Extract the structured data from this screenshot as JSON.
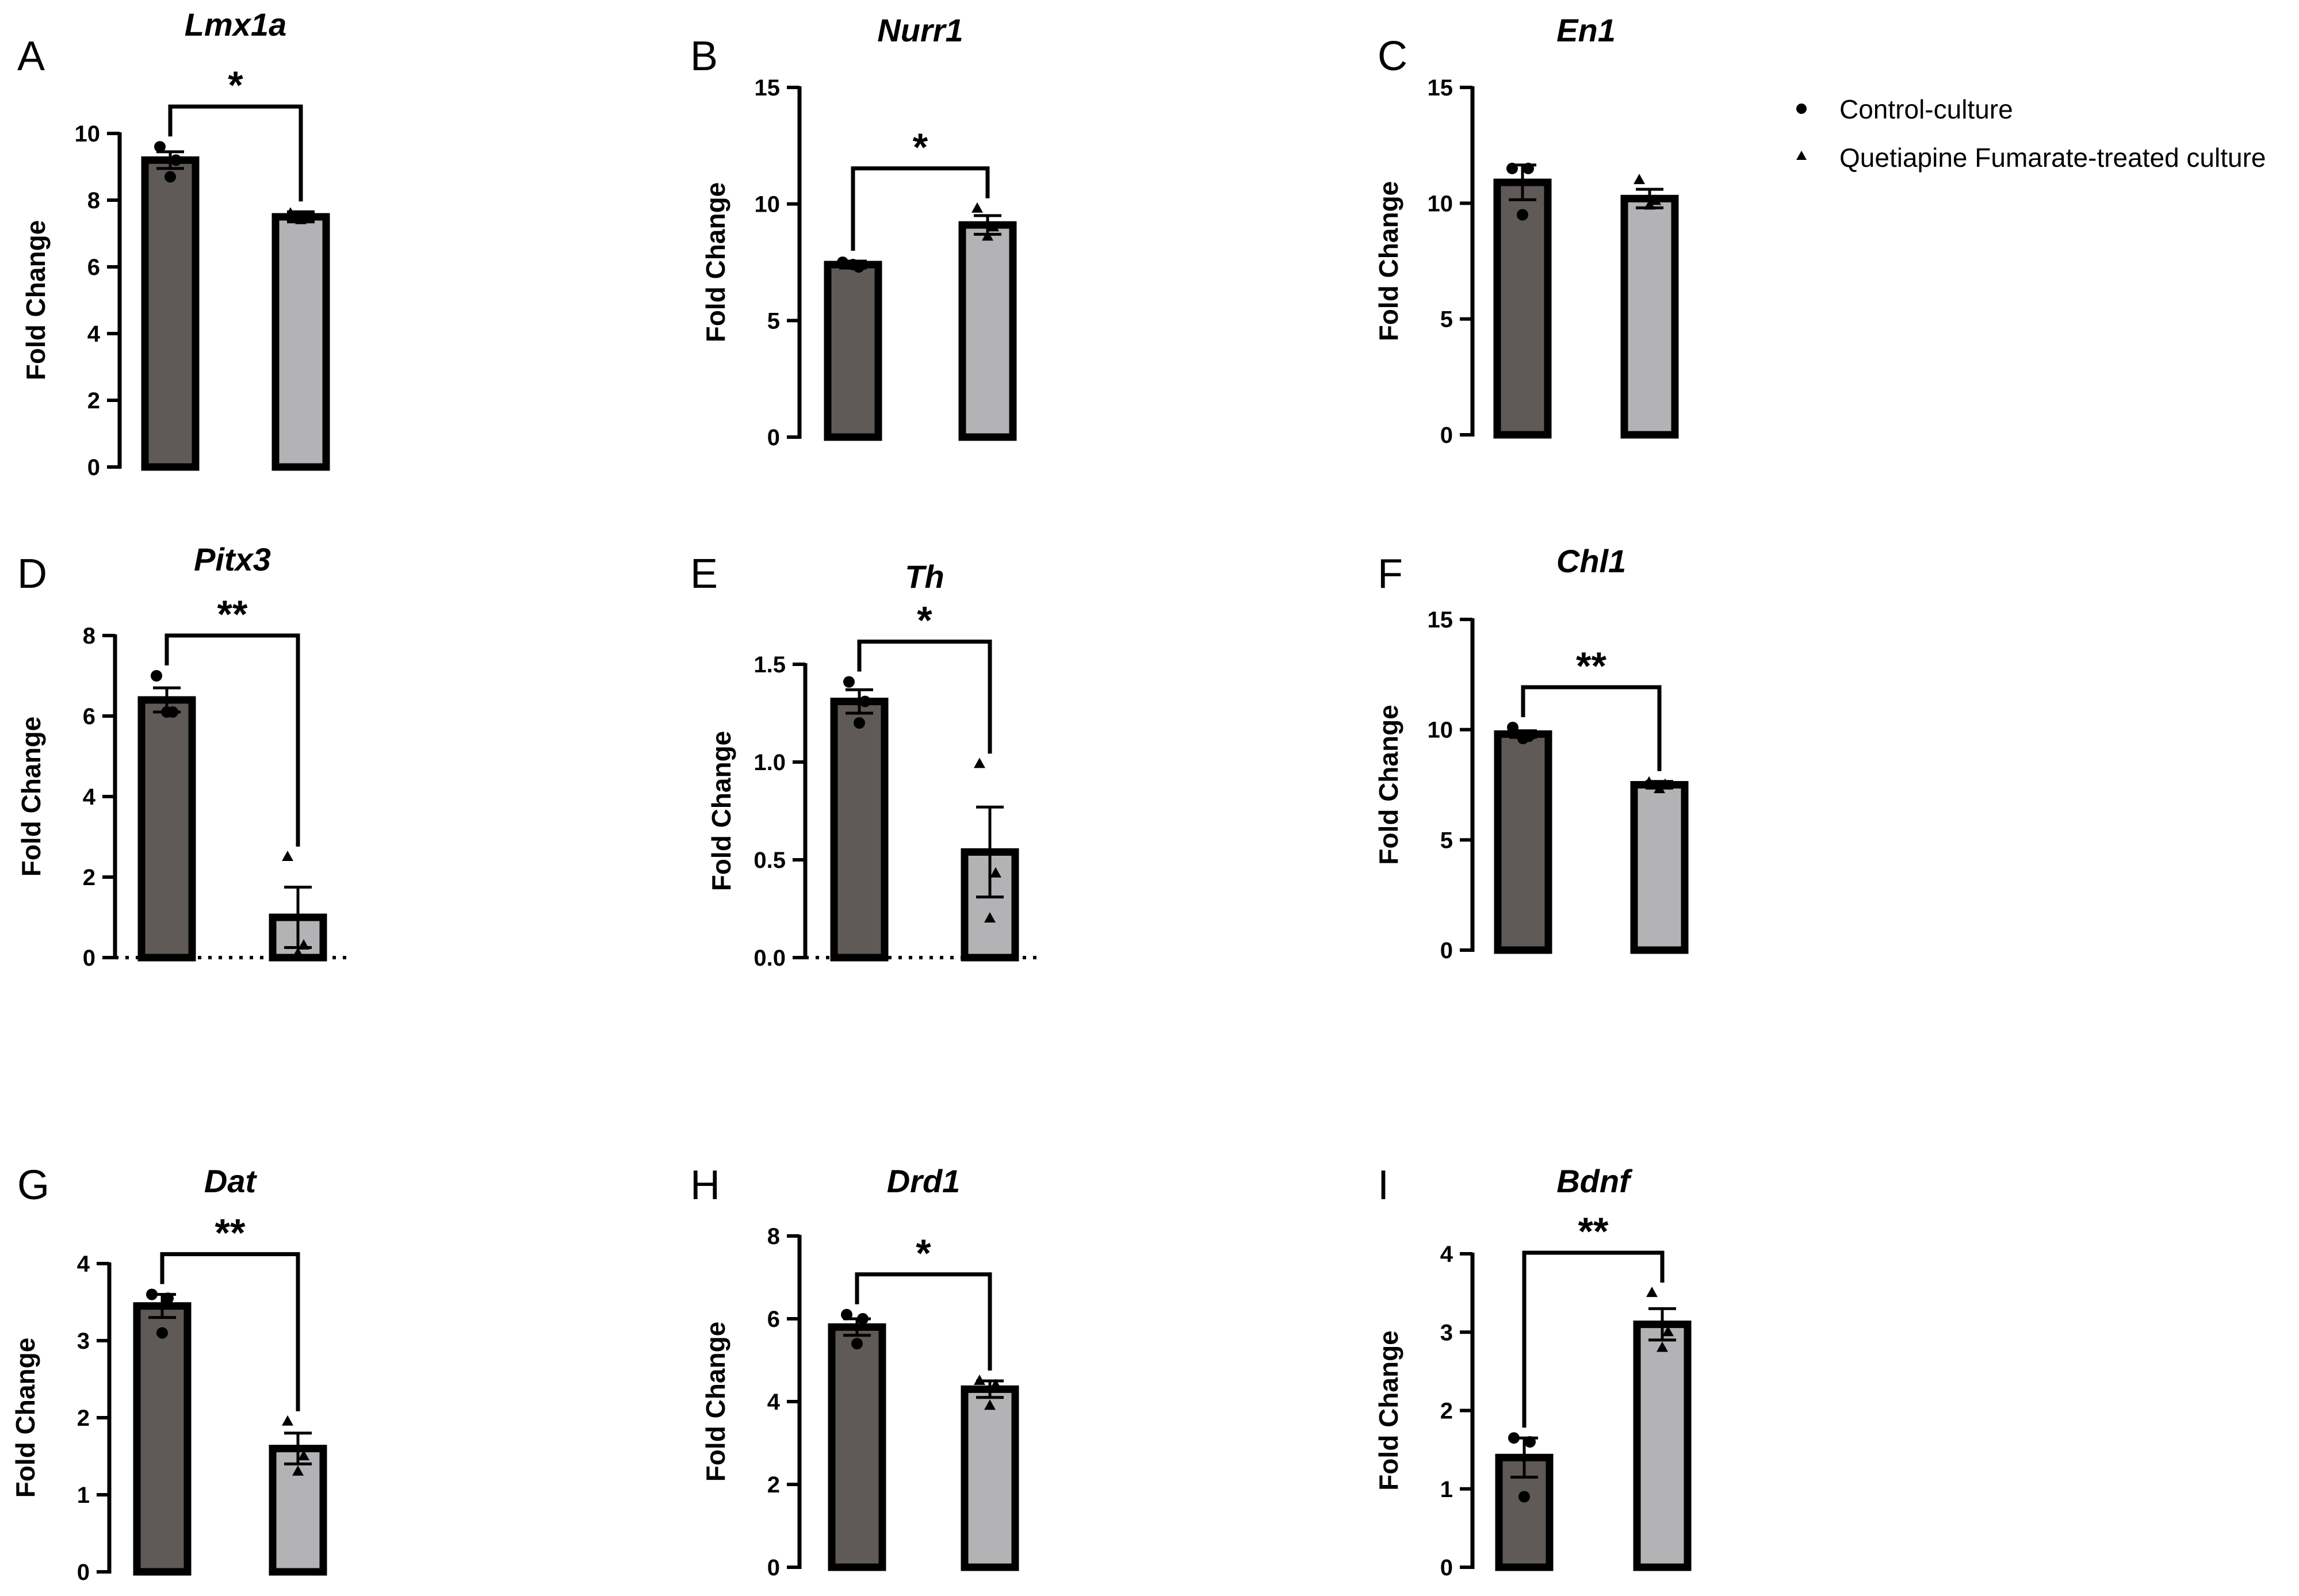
{
  "legend": {
    "entries": [
      {
        "label": "Control-culture",
        "marker": "circle",
        "color": "#5f5a58"
      },
      {
        "label": "Quetiapine Fumarate-treated culture",
        "marker": "triangle",
        "color": "#b3b3b5"
      }
    ]
  },
  "colors": {
    "control": "#5f5a58",
    "treated": "#b3b3b5",
    "outline": "#000000"
  },
  "chart_data": [
    {
      "panel": "A",
      "type": "bar",
      "title": "Lmx1a",
      "ylabel": "Fold Change",
      "categories": [
        "Control-culture",
        "Quetiapine Fumarate-treated culture"
      ],
      "values": [
        9.2,
        7.5
      ],
      "sem": [
        0.25,
        0.15
      ],
      "points": [
        [
          9.6,
          9.2,
          8.7
        ],
        [
          7.6,
          7.5,
          7.4
        ]
      ],
      "ylim": [
        0,
        10
      ],
      "yticks": [
        "0",
        "2",
        "4",
        "6",
        "8",
        "10"
      ],
      "significance": "*",
      "dotted_baseline": false
    },
    {
      "panel": "B",
      "type": "bar",
      "title": "Nurr1",
      "ylabel": "Fold Change",
      "categories": [
        "Control-culture",
        "Quetiapine Fumarate-treated culture"
      ],
      "values": [
        7.4,
        9.1
      ],
      "sem": [
        0.15,
        0.4
      ],
      "points": [
        [
          7.5,
          7.3,
          7.4
        ],
        [
          9.8,
          9.0,
          8.6
        ]
      ],
      "ylim": [
        0,
        15
      ],
      "yticks": [
        "0",
        "5",
        "10",
        "15"
      ],
      "significance": "*",
      "dotted_baseline": false
    },
    {
      "panel": "C",
      "type": "bar",
      "title": "En1",
      "ylabel": "Fold Change",
      "categories": [
        "Control-culture",
        "Quetiapine Fumarate-treated culture"
      ],
      "values": [
        10.9,
        10.2
      ],
      "sem": [
        0.75,
        0.4
      ],
      "points": [
        [
          11.5,
          11.5,
          9.5
        ],
        [
          11.0,
          10.1,
          9.9
        ]
      ],
      "ylim": [
        0,
        15
      ],
      "yticks": [
        "0",
        "5",
        "10",
        "15"
      ],
      "significance": "",
      "dotted_baseline": false
    },
    {
      "panel": "D",
      "type": "bar",
      "title": "Pitx3",
      "ylabel": "Fold Change",
      "categories": [
        "Control-culture",
        "Quetiapine Fumarate-treated culture"
      ],
      "values": [
        6.4,
        1.0
      ],
      "sem": [
        0.3,
        0.75
      ],
      "points": [
        [
          7.0,
          6.1,
          6.1
        ],
        [
          2.5,
          0.3,
          0.1
        ]
      ],
      "ylim": [
        0,
        8
      ],
      "yticks": [
        "0",
        "2",
        "4",
        "6",
        "8"
      ],
      "significance": "**",
      "dotted_baseline": true
    },
    {
      "panel": "E",
      "type": "bar",
      "title": "Th",
      "ylabel": "Fold Change",
      "categories": [
        "Control-culture",
        "Quetiapine Fumarate-treated culture"
      ],
      "values": [
        1.31,
        0.54
      ],
      "sem": [
        0.06,
        0.23
      ],
      "points": [
        [
          1.41,
          1.31,
          1.2
        ],
        [
          0.99,
          0.43,
          0.2
        ]
      ],
      "ylim": [
        0,
        1.5
      ],
      "yticks": [
        "0.0",
        "0.5",
        "1.0",
        "1.5"
      ],
      "significance": "*",
      "dotted_baseline": true
    },
    {
      "panel": "F",
      "type": "bar",
      "title": "Chl1",
      "ylabel": "Fold Change",
      "categories": [
        "Control-culture",
        "Quetiapine Fumarate-treated culture"
      ],
      "values": [
        9.8,
        7.5
      ],
      "sem": [
        0.15,
        0.15
      ],
      "points": [
        [
          10.1,
          9.7,
          9.6
        ],
        [
          7.6,
          7.5,
          7.3
        ]
      ],
      "ylim": [
        0,
        15
      ],
      "yticks": [
        "0",
        "5",
        "10",
        "15"
      ],
      "significance": "**",
      "dotted_baseline": false
    },
    {
      "panel": "G",
      "type": "bar",
      "title": "Dat",
      "ylabel": "Fold Change",
      "categories": [
        "Control-culture",
        "Quetiapine Fumarate-treated culture"
      ],
      "values": [
        3.45,
        1.6
      ],
      "sem": [
        0.15,
        0.2
      ],
      "points": [
        [
          3.6,
          3.55,
          3.1
        ],
        [
          1.95,
          1.5,
          1.3
        ]
      ],
      "ylim": [
        0,
        4
      ],
      "yticks": [
        "0",
        "1",
        "2",
        "3",
        "4"
      ],
      "significance": "**",
      "dotted_baseline": false
    },
    {
      "panel": "H",
      "type": "bar",
      "title": "Drd1",
      "ylabel": "Fold Change",
      "categories": [
        "Control-culture",
        "Quetiapine Fumarate-treated culture"
      ],
      "values": [
        5.8,
        4.3
      ],
      "sem": [
        0.2,
        0.2
      ],
      "points": [
        [
          6.1,
          6.0,
          5.4
        ],
        [
          4.5,
          4.4,
          3.9
        ]
      ],
      "ylim": [
        0,
        8
      ],
      "yticks": [
        "0",
        "2",
        "4",
        "6",
        "8"
      ],
      "significance": "*",
      "dotted_baseline": false
    },
    {
      "panel": "I",
      "type": "bar",
      "title": "Bdnf",
      "ylabel": "Fold Change",
      "categories": [
        "Control-culture",
        "Quetiapine Fumarate-treated culture"
      ],
      "values": [
        1.4,
        3.1
      ],
      "sem": [
        0.25,
        0.2
      ],
      "points": [
        [
          1.65,
          1.6,
          0.9
        ],
        [
          3.5,
          3.0,
          2.8
        ]
      ],
      "ylim": [
        0,
        4
      ],
      "yticks": [
        "0",
        "1",
        "2",
        "3",
        "4"
      ],
      "significance": "**",
      "dotted_baseline": false
    }
  ]
}
